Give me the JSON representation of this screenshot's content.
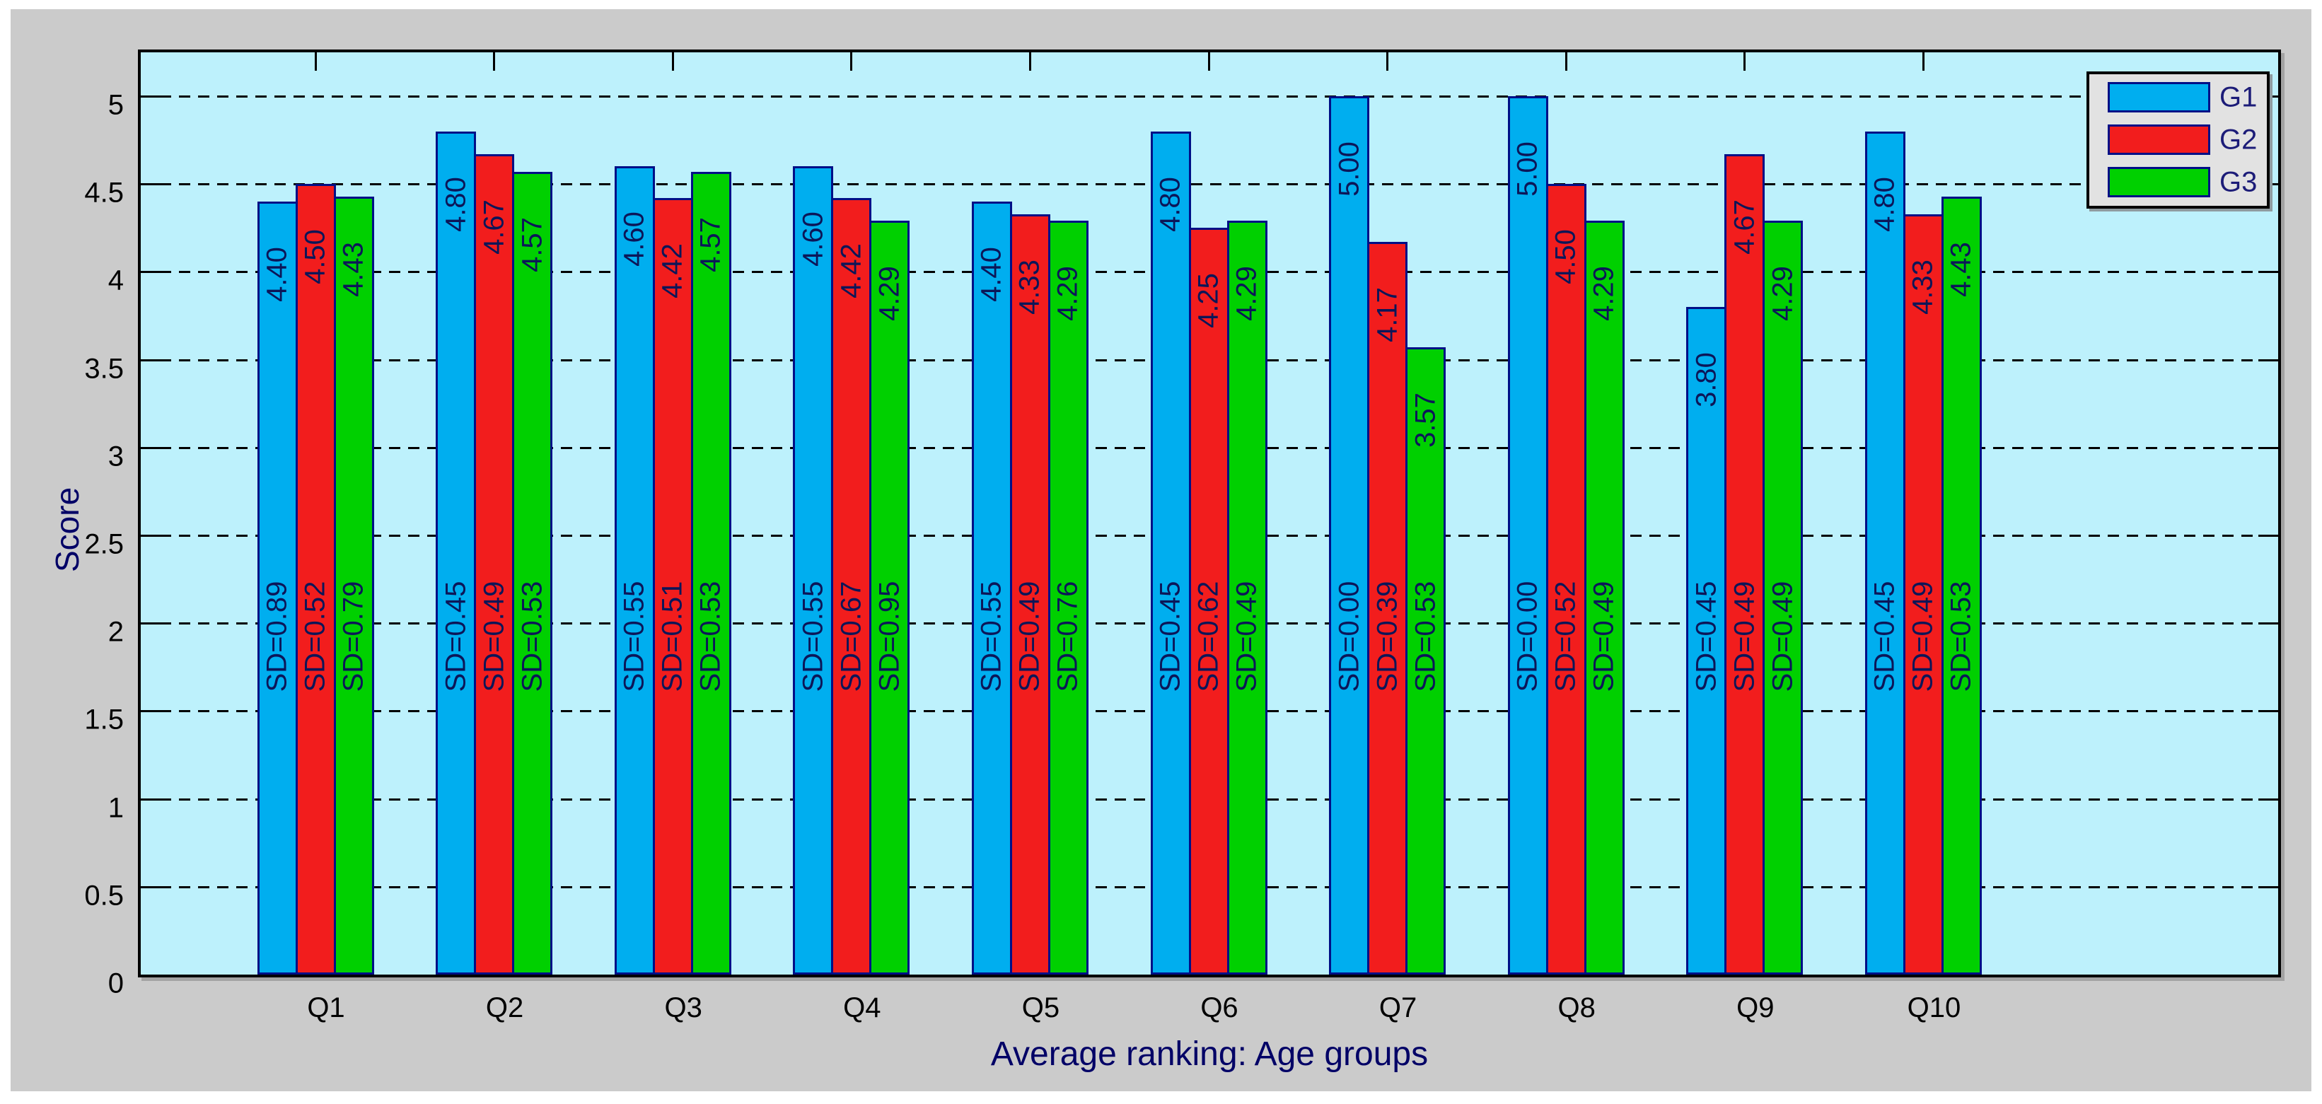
{
  "figure": {
    "background_color": "#cbcbcb",
    "plot_background_color": "#bdf1fc",
    "axis_box_color": "#000000",
    "grid_style": "horizontal dashed black lines every 0.5",
    "bar_border_color": "#000f86",
    "bar_label_color": "#0c1658",
    "axis_title_color": "#000066",
    "tick_label_color": "#000000",
    "legend_background_color": "#e2e2e2"
  },
  "chart_data": {
    "type": "bar",
    "title": "",
    "xlabel": "Average ranking: Age groups",
    "ylabel": "Score",
    "categories": [
      "Q1",
      "Q2",
      "Q3",
      "Q4",
      "Q5",
      "Q6",
      "Q7",
      "Q8",
      "Q9",
      "Q10"
    ],
    "series": [
      {
        "name": "G1",
        "color": "#00aeef",
        "values": [
          4.4,
          4.8,
          4.6,
          4.6,
          4.4,
          4.8,
          5.0,
          5.0,
          3.8,
          4.8
        ],
        "sd": [
          0.89,
          0.45,
          0.55,
          0.55,
          0.55,
          0.45,
          0.0,
          0.0,
          0.45,
          0.45
        ]
      },
      {
        "name": "G2",
        "color": "#f21d1d",
        "values": [
          4.5,
          4.67,
          4.42,
          4.42,
          4.33,
          4.25,
          4.17,
          4.5,
          4.67,
          4.33
        ],
        "sd": [
          0.52,
          0.49,
          0.51,
          0.67,
          0.49,
          0.62,
          0.39,
          0.52,
          0.49,
          0.49
        ]
      },
      {
        "name": "G3",
        "color": "#00d000",
        "values": [
          4.43,
          4.57,
          4.57,
          4.29,
          4.29,
          4.29,
          3.57,
          4.29,
          4.29,
          4.43
        ],
        "sd": [
          0.79,
          0.53,
          0.53,
          0.95,
          0.76,
          0.49,
          0.53,
          0.49,
          0.49,
          0.53
        ]
      }
    ],
    "ylim": [
      0,
      5.25
    ],
    "yticks": [
      "0",
      "0.5",
      "1",
      "1.5",
      "2",
      "2.5",
      "3",
      "3.5",
      "4",
      "4.5",
      "5"
    ],
    "grid": "on",
    "legend": {
      "position": "top-right",
      "entries": [
        "G1",
        "G2",
        "G3"
      ]
    },
    "bar_value_label_format": "values shown rotated 90° near bar top, 2 decimals",
    "sd_label_format": "SD=x.xx shown rotated 90° at mid-bar height"
  }
}
